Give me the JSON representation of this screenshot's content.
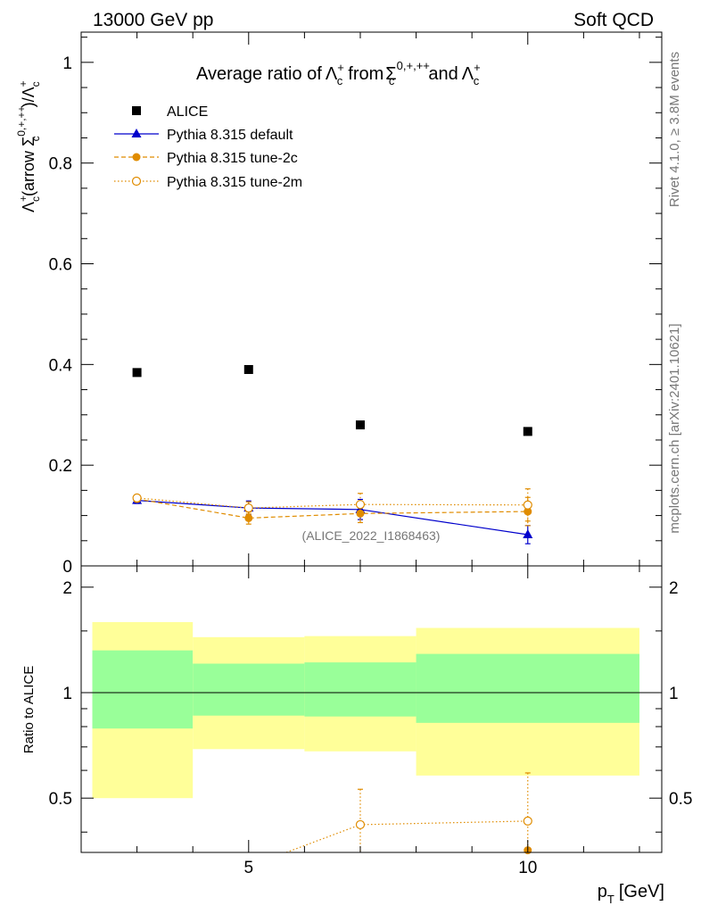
{
  "header": {
    "left": "13000 GeV pp",
    "right": "Soft QCD"
  },
  "side_texts": {
    "rivet": "Rivet 4.1.0, ≥ 3.8M events",
    "mcplots": "mcplots.cern.ch [arXiv:2401.10621]"
  },
  "colors": {
    "data": "#000000",
    "default": "#0000cc",
    "tune": "#e08c00",
    "band_outer": "#ffff99",
    "band_inner": "#99ff99"
  },
  "chart_data": [
    {
      "type": "scatter",
      "title": "Average ratio of Λc+ from Σc0,+,++ and Λc+",
      "title_parts": {
        "a": "Average ratio of",
        "b": "from",
        "c": "and"
      },
      "xlabel": "pT [GeV]",
      "ylabel": "Λc+(arrow Σc0,+,++)/Λc+",
      "ylabel_parts": {
        "a": "(arrow ",
        "b": ")/"
      },
      "symbols": {
        "lambda": "Λ",
        "sigma": "Σ",
        "sub": "c",
        "plus": "+",
        "sigma_sup": "0,+,++"
      },
      "xlim": [
        2,
        12.4
      ],
      "ylim": [
        0,
        1.06
      ],
      "yticks": [
        0,
        0.2,
        0.4,
        0.6,
        0.8,
        1
      ],
      "ytick_labels": [
        "0",
        "0.2",
        "0.4",
        "0.6",
        "0.8",
        "1"
      ],
      "analysis_label": "(ALICE_2022_I1868463)",
      "legend_position": "top-left",
      "series": [
        {
          "name": "ALICE",
          "style": "data",
          "x": [
            3,
            5,
            7,
            10
          ],
          "y": [
            0.384,
            0.39,
            0.28,
            0.267
          ],
          "err": [
            0,
            0,
            0,
            0
          ]
        },
        {
          "name": "Pythia 8.315 default",
          "style": "default",
          "x": [
            3,
            5,
            7,
            10
          ],
          "y": [
            0.13,
            0.115,
            0.112,
            0.062
          ],
          "err": [
            0.006,
            0.014,
            0.02,
            0.018
          ]
        },
        {
          "name": "Pythia 8.315 tune-2c",
          "style": "tune2c",
          "x": [
            3,
            5,
            7,
            10
          ],
          "y": [
            0.133,
            0.095,
            0.104,
            0.108
          ],
          "err": [
            0.006,
            0.012,
            0.018,
            0.028
          ]
        },
        {
          "name": "Pythia 8.315 tune-2m",
          "style": "tune2m",
          "x": [
            3,
            5,
            7,
            10
          ],
          "y": [
            0.135,
            0.115,
            0.122,
            0.121
          ],
          "err": [
            0.006,
            0.012,
            0.022,
            0.032
          ]
        }
      ]
    },
    {
      "type": "scatter",
      "title": "",
      "xlabel": "pT [GeV]",
      "ylabel": "Ratio to ALICE",
      "xlim": [
        2,
        12.4
      ],
      "ylim": [
        0.35,
        2.3
      ],
      "xticks": [
        5,
        10
      ],
      "xtick_labels": [
        "5",
        "10"
      ],
      "yticks": [
        0.5,
        1,
        2
      ],
      "ytick_labels": [
        "0.5",
        "1",
        "2"
      ],
      "bands": [
        {
          "xlo": 2.2,
          "xhi": 4,
          "outer": [
            0.5,
            1.59
          ],
          "inner": [
            0.79,
            1.32
          ]
        },
        {
          "xlo": 4,
          "xhi": 6,
          "outer": [
            0.69,
            1.44
          ],
          "inner": [
            0.86,
            1.21
          ]
        },
        {
          "xlo": 6,
          "xhi": 8,
          "outer": [
            0.68,
            1.45
          ],
          "inner": [
            0.855,
            1.22
          ]
        },
        {
          "xlo": 8,
          "xhi": 12,
          "outer": [
            0.58,
            1.53
          ],
          "inner": [
            0.82,
            1.29
          ]
        }
      ],
      "series": [
        {
          "name": "Pythia 8.315 tune-2m",
          "style": "tune2m",
          "x": [
            7,
            10
          ],
          "y": [
            0.42,
            0.43
          ],
          "err": [
            0.11,
            0.16
          ]
        },
        {
          "name": "Pythia 8.315 tune-2c",
          "style": "tune2c",
          "x": [
            10
          ],
          "y": [
            0.355
          ],
          "err": [
            0.0
          ]
        }
      ]
    }
  ]
}
